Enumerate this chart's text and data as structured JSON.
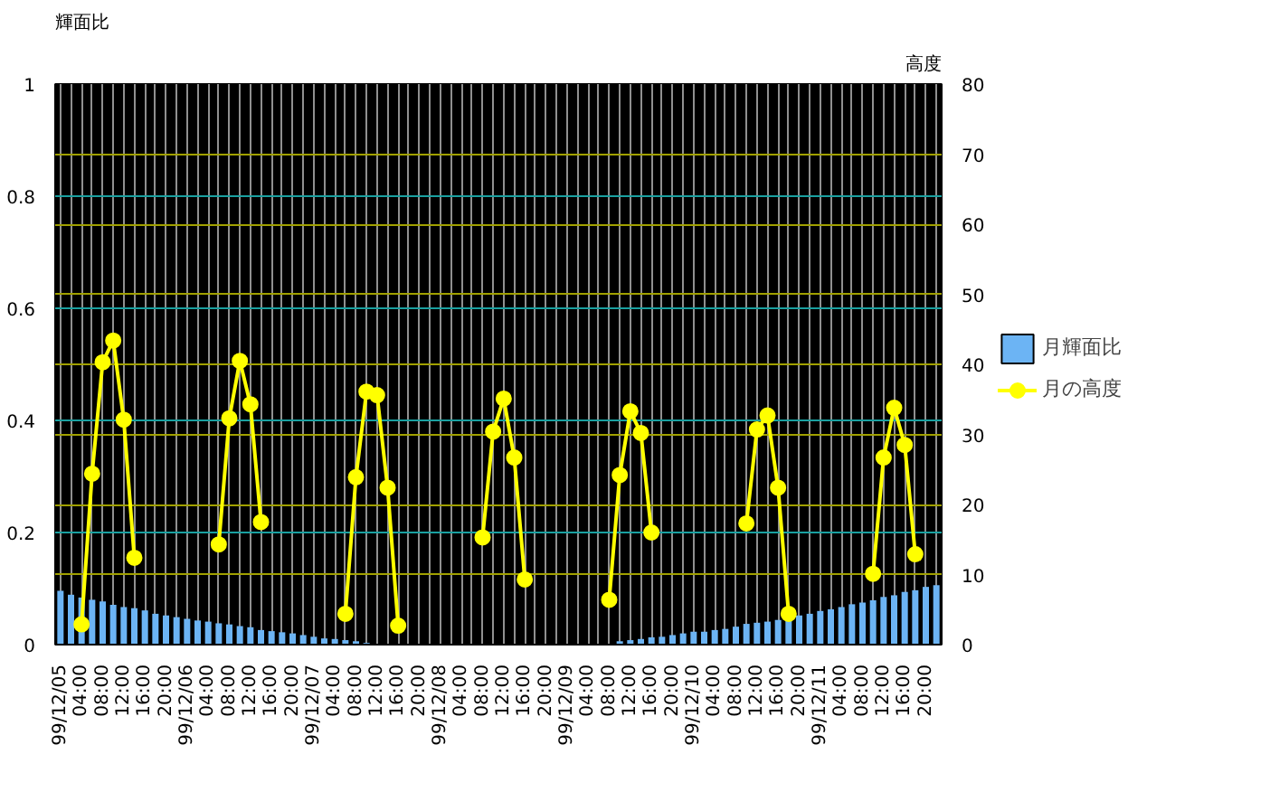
{
  "chart_data": {
    "type": "bar",
    "ylabel": "輝面比",
    "y2label": "高度",
    "categories": [
      "99/12/05",
      null,
      "04:00",
      null,
      "08:00",
      null,
      "12:00",
      null,
      "16:00",
      null,
      "20:00",
      null,
      "99/12/06",
      null,
      "04:00",
      null,
      "08:00",
      null,
      "12:00",
      null,
      "16:00",
      null,
      "20:00",
      null,
      "99/12/07",
      null,
      "04:00",
      null,
      "08:00",
      null,
      "12:00",
      null,
      "16:00",
      null,
      "20:00",
      null,
      "99/12/08",
      null,
      "04:00",
      null,
      "08:00",
      null,
      "12:00",
      null,
      "16:00",
      null,
      "20:00",
      null,
      "99/12/09",
      null,
      "04:00",
      null,
      "08:00",
      null,
      "12:00",
      null,
      "16:00",
      null,
      "20:00",
      null,
      "99/12/10",
      null,
      "04:00",
      null,
      "08:00",
      null,
      "12:00",
      null,
      "16:00",
      null,
      "20:00",
      null,
      "99/12/11",
      null,
      "04:00",
      null,
      "08:00",
      null,
      "12:00",
      null,
      "16:00",
      null,
      "20:00",
      null
    ],
    "ylim": [
      0,
      1
    ],
    "yticks": [
      0,
      0.2,
      0.4,
      0.6,
      0.8,
      1
    ],
    "y2lim": [
      0,
      80
    ],
    "y2ticks": [
      0,
      10,
      20,
      30,
      40,
      50,
      60,
      70,
      80
    ],
    "grid": true,
    "legend": "right",
    "series": [
      {
        "name": "月輝面比",
        "type": "bar",
        "color": "#6cb4f4",
        "values": [
          0.096,
          0.089,
          0.084,
          0.08,
          0.077,
          0.071,
          0.067,
          0.065,
          0.061,
          0.055,
          0.052,
          0.049,
          0.046,
          0.043,
          0.041,
          0.038,
          0.036,
          0.033,
          0.031,
          0.026,
          0.024,
          0.022,
          0.02,
          0.017,
          0.014,
          0.011,
          0.01,
          0.008,
          0.006,
          0.003,
          0,
          0,
          0,
          0,
          0,
          0,
          0,
          0,
          0,
          0,
          0,
          0,
          0,
          0,
          0,
          0,
          0,
          0,
          0,
          0,
          0,
          0,
          0,
          0.006,
          0.008,
          0.01,
          0.013,
          0.014,
          0.017,
          0.02,
          0.023,
          0.023,
          0.026,
          0.028,
          0.032,
          0.037,
          0.039,
          0.041,
          0.044,
          0.046,
          0.052,
          0.055,
          0.06,
          0.063,
          0.067,
          0.072,
          0.075,
          0.079,
          0.085,
          0.088,
          0.094,
          0.097,
          0.103,
          0.106
        ]
      },
      {
        "name": "月の高度",
        "type": "line",
        "axis": "y2",
        "color": "#ffff00",
        "marker": "circle",
        "values": [
          null,
          null,
          2.9,
          24.4,
          40.3,
          43.4,
          32.1,
          12.4,
          null,
          null,
          null,
          null,
          null,
          null,
          null,
          14.3,
          32.3,
          40.5,
          34.3,
          17.5,
          null,
          null,
          null,
          null,
          null,
          null,
          null,
          4.4,
          23.9,
          36.1,
          35.6,
          22.4,
          2.7,
          null,
          null,
          null,
          null,
          null,
          null,
          null,
          15.3,
          30.4,
          35.1,
          26.7,
          9.3,
          null,
          null,
          null,
          null,
          null,
          null,
          null,
          6.4,
          24.2,
          33.3,
          30.2,
          16.0,
          null,
          null,
          null,
          null,
          null,
          null,
          null,
          null,
          17.3,
          30.7,
          32.7,
          22.4,
          4.4,
          null,
          null,
          null,
          null,
          null,
          null,
          null,
          10.1,
          26.7,
          33.8,
          28.5,
          12.9,
          null,
          null
        ]
      }
    ]
  }
}
